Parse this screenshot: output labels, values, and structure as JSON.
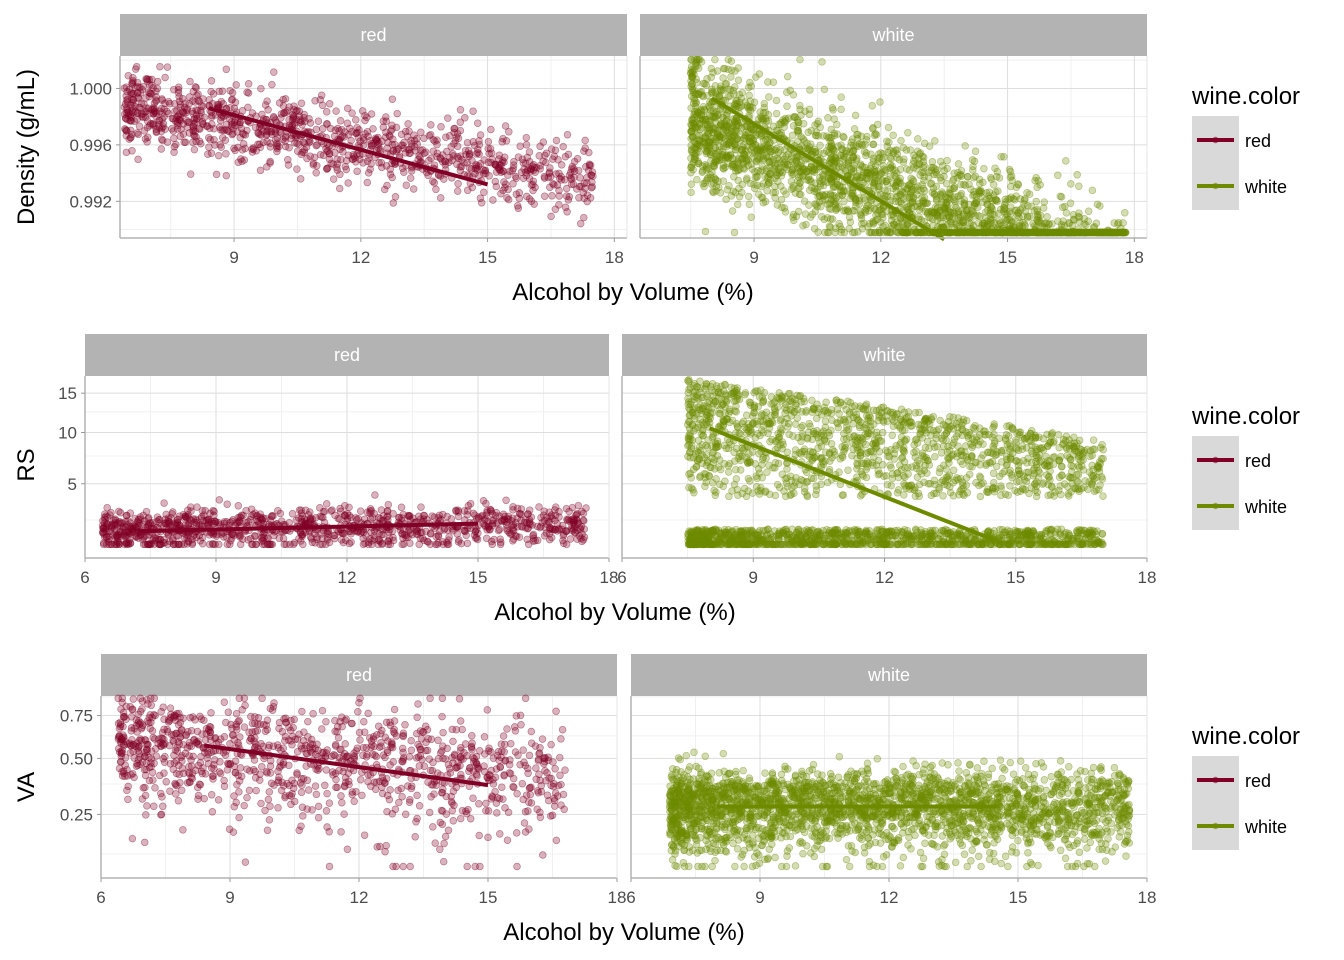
{
  "legend": {
    "title": "wine.color",
    "items": [
      {
        "label": "red",
        "color": "#800026"
      },
      {
        "label": "white",
        "color": "#6E8B00"
      }
    ]
  },
  "chart_data": [
    {
      "type": "scatter",
      "xlabel": "Alcohol by Volume (%)",
      "ylabel": "Density (g/mL)",
      "facets": [
        "red",
        "white"
      ],
      "x_ticks": [
        "9",
        "12",
        "15",
        "18"
      ],
      "x_tick_values": [
        9,
        12,
        15,
        18
      ],
      "y_ticks": [
        "0.992",
        "0.996",
        "1.000"
      ],
      "y_tick_values": [
        0.992,
        0.996,
        1.0
      ],
      "xlim": [
        6.3,
        18.3
      ],
      "ylim": [
        0.9894,
        1.0023
      ],
      "fit_lines": {
        "red": {
          "x": [
            8.4,
            15.0
          ],
          "y": [
            0.9986,
            0.9932
          ]
        },
        "white": {
          "x": [
            8.0,
            13.5
          ],
          "y": [
            0.9993,
            0.9893
          ]
        }
      },
      "point_clouds": {
        "red": {
          "n": 1100,
          "x_range": [
            6.4,
            17.5
          ],
          "center_y": 0.9967,
          "spread_y": 0.0014
        },
        "white": {
          "n": 2600,
          "x_range": [
            7.5,
            17.8
          ],
          "center_y": 0.994,
          "spread_y": 0.0024
        }
      },
      "grid": true,
      "legend_position": "right"
    },
    {
      "type": "scatter",
      "xlabel": "Alcohol by Volume  (%)",
      "ylabel": "RS",
      "facets": [
        "red",
        "white"
      ],
      "y_scale": "sqrt",
      "x_ticks": [
        "6",
        "9",
        "12",
        "15",
        "18"
      ],
      "x_tick_values": [
        6,
        9,
        12,
        15,
        18
      ],
      "y_ticks": [
        "5",
        "10",
        "15"
      ],
      "y_tick_values": [
        5,
        10,
        15
      ],
      "xlim": [
        6.0,
        18.0
      ],
      "ylim": [
        0.8,
        17.5
      ],
      "fit_lines": {
        "red": {
          "x": [
            7.2,
            15.0
          ],
          "y": [
            1.9,
            2.3
          ]
        },
        "white": {
          "x": [
            8.0,
            14.5
          ],
          "y": [
            10.5,
            1.5
          ]
        }
      },
      "point_clouds": {
        "red": {
          "n": 1100,
          "x_range": [
            6.4,
            17.5
          ],
          "center_y": 2.1,
          "spread_y": 0.6
        },
        "white": {
          "n": 2600,
          "x_range": [
            7.5,
            17.0
          ],
          "upper_band_y": [
            4,
            17
          ],
          "lower_band_y": [
            1.0,
            2.0
          ]
        }
      },
      "grid": true,
      "legend_position": "right"
    },
    {
      "type": "scatter",
      "xlabel": "Alcohol by Volume  (%)",
      "ylabel": "VA",
      "facets": [
        "red",
        "white"
      ],
      "y_scale": "sqrt",
      "x_ticks": [
        "6",
        "9",
        "12",
        "15",
        "18"
      ],
      "x_tick_values": [
        6,
        9,
        12,
        15,
        18
      ],
      "y_ticks": [
        "0.25",
        "0.50",
        "0.75"
      ],
      "y_tick_values": [
        0.25,
        0.5,
        0.75
      ],
      "xlim": [
        6.0,
        18.0
      ],
      "ylim": [
        0.07,
        0.88
      ],
      "fit_lines": {
        "red": {
          "x": [
            8.4,
            15.0
          ],
          "y": [
            0.57,
            0.37
          ]
        },
        "white": {
          "x": [
            8.0,
            14.5
          ],
          "y": [
            0.28,
            0.28
          ]
        }
      },
      "point_clouds": {
        "red": {
          "n": 1100,
          "x_range": [
            6.4,
            16.8
          ],
          "center_y": 0.52,
          "spread_y": 0.17
        },
        "white": {
          "n": 2600,
          "x_range": [
            6.9,
            17.6
          ],
          "center_y": 0.27,
          "spread_y": 0.09
        }
      },
      "grid": true,
      "legend_position": "right"
    }
  ]
}
